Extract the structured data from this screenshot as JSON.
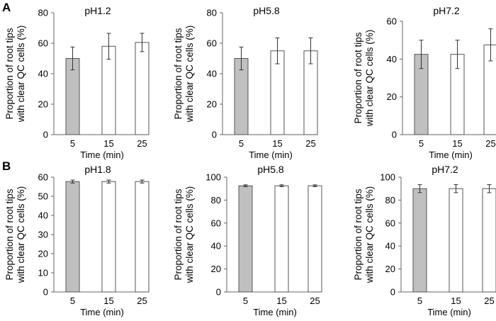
{
  "figure": {
    "panel_labels": [
      "A",
      "B"
    ]
  },
  "colors": {
    "first_bar": "#c0c0c0",
    "other_bars": "#ffffff",
    "bar_stroke": "#555555",
    "axis": "#666666"
  },
  "chart_data": [
    {
      "type": "bar",
      "title": "pH1.2",
      "xlabel": "Time (min)",
      "ylabel": "Proportion of root tips with clear QC cells (%)",
      "categories": [
        "5",
        "15",
        "25"
      ],
      "values": [
        50,
        58,
        60.5
      ],
      "errors": [
        7.5,
        8.5,
        6
      ],
      "ylim": [
        0,
        80
      ],
      "yticks": [
        0,
        20,
        40,
        60,
        80
      ]
    },
    {
      "type": "bar",
      "title": "pH5.8",
      "xlabel": "Time (min)",
      "ylabel": "Proportion of root tips with clear QC cells (%)",
      "categories": [
        "5",
        "15",
        "25"
      ],
      "values": [
        50,
        55,
        55
      ],
      "errors": [
        7.5,
        8.5,
        8.5
      ],
      "ylim": [
        0,
        80
      ],
      "yticks": [
        0,
        20,
        40,
        60,
        80
      ]
    },
    {
      "type": "bar",
      "title": "pH7.2",
      "xlabel": "Time (min)",
      "ylabel": "Proportion of root tips with clear QC cells (%)",
      "categories": [
        "5",
        "15",
        "25"
      ],
      "values": [
        42.5,
        42.5,
        47.5
      ],
      "errors": [
        7.5,
        7.5,
        8.5
      ],
      "ylim": [
        0,
        60
      ],
      "yticks": [
        0,
        20,
        40,
        60
      ]
    },
    {
      "type": "bar",
      "title": "pH1.8",
      "xlabel": "Time (min)",
      "ylabel": "Proportion of root tips with clear QC cells (%)",
      "categories": [
        "5",
        "15",
        "25"
      ],
      "values": [
        57.7,
        57.7,
        57.7
      ],
      "errors": [
        0.8,
        0.8,
        0.8
      ],
      "ylim": [
        0,
        60
      ],
      "yticks": [
        0,
        10,
        20,
        30,
        40,
        50,
        60
      ]
    },
    {
      "type": "bar",
      "title": "pH5.8",
      "xlabel": "Time (min)",
      "ylabel": "Proportion of root tips with clear QC cells (%)",
      "categories": [
        "5",
        "15",
        "25"
      ],
      "values": [
        92.5,
        92.5,
        92.5
      ],
      "errors": [
        0.8,
        0.8,
        0.8
      ],
      "ylim": [
        0,
        100
      ],
      "yticks": [
        0,
        20,
        40,
        60,
        80,
        100
      ]
    },
    {
      "type": "bar",
      "title": "pH7.2",
      "xlabel": "Time (min)",
      "ylabel": "Proportion of root tips with clear QC cells (%)",
      "categories": [
        "5",
        "15",
        "25"
      ],
      "values": [
        90,
        90,
        90
      ],
      "errors": [
        3.5,
        3.5,
        3.5
      ],
      "ylim": [
        0,
        100
      ],
      "yticks": [
        0,
        20,
        40,
        60,
        80,
        100
      ]
    }
  ]
}
